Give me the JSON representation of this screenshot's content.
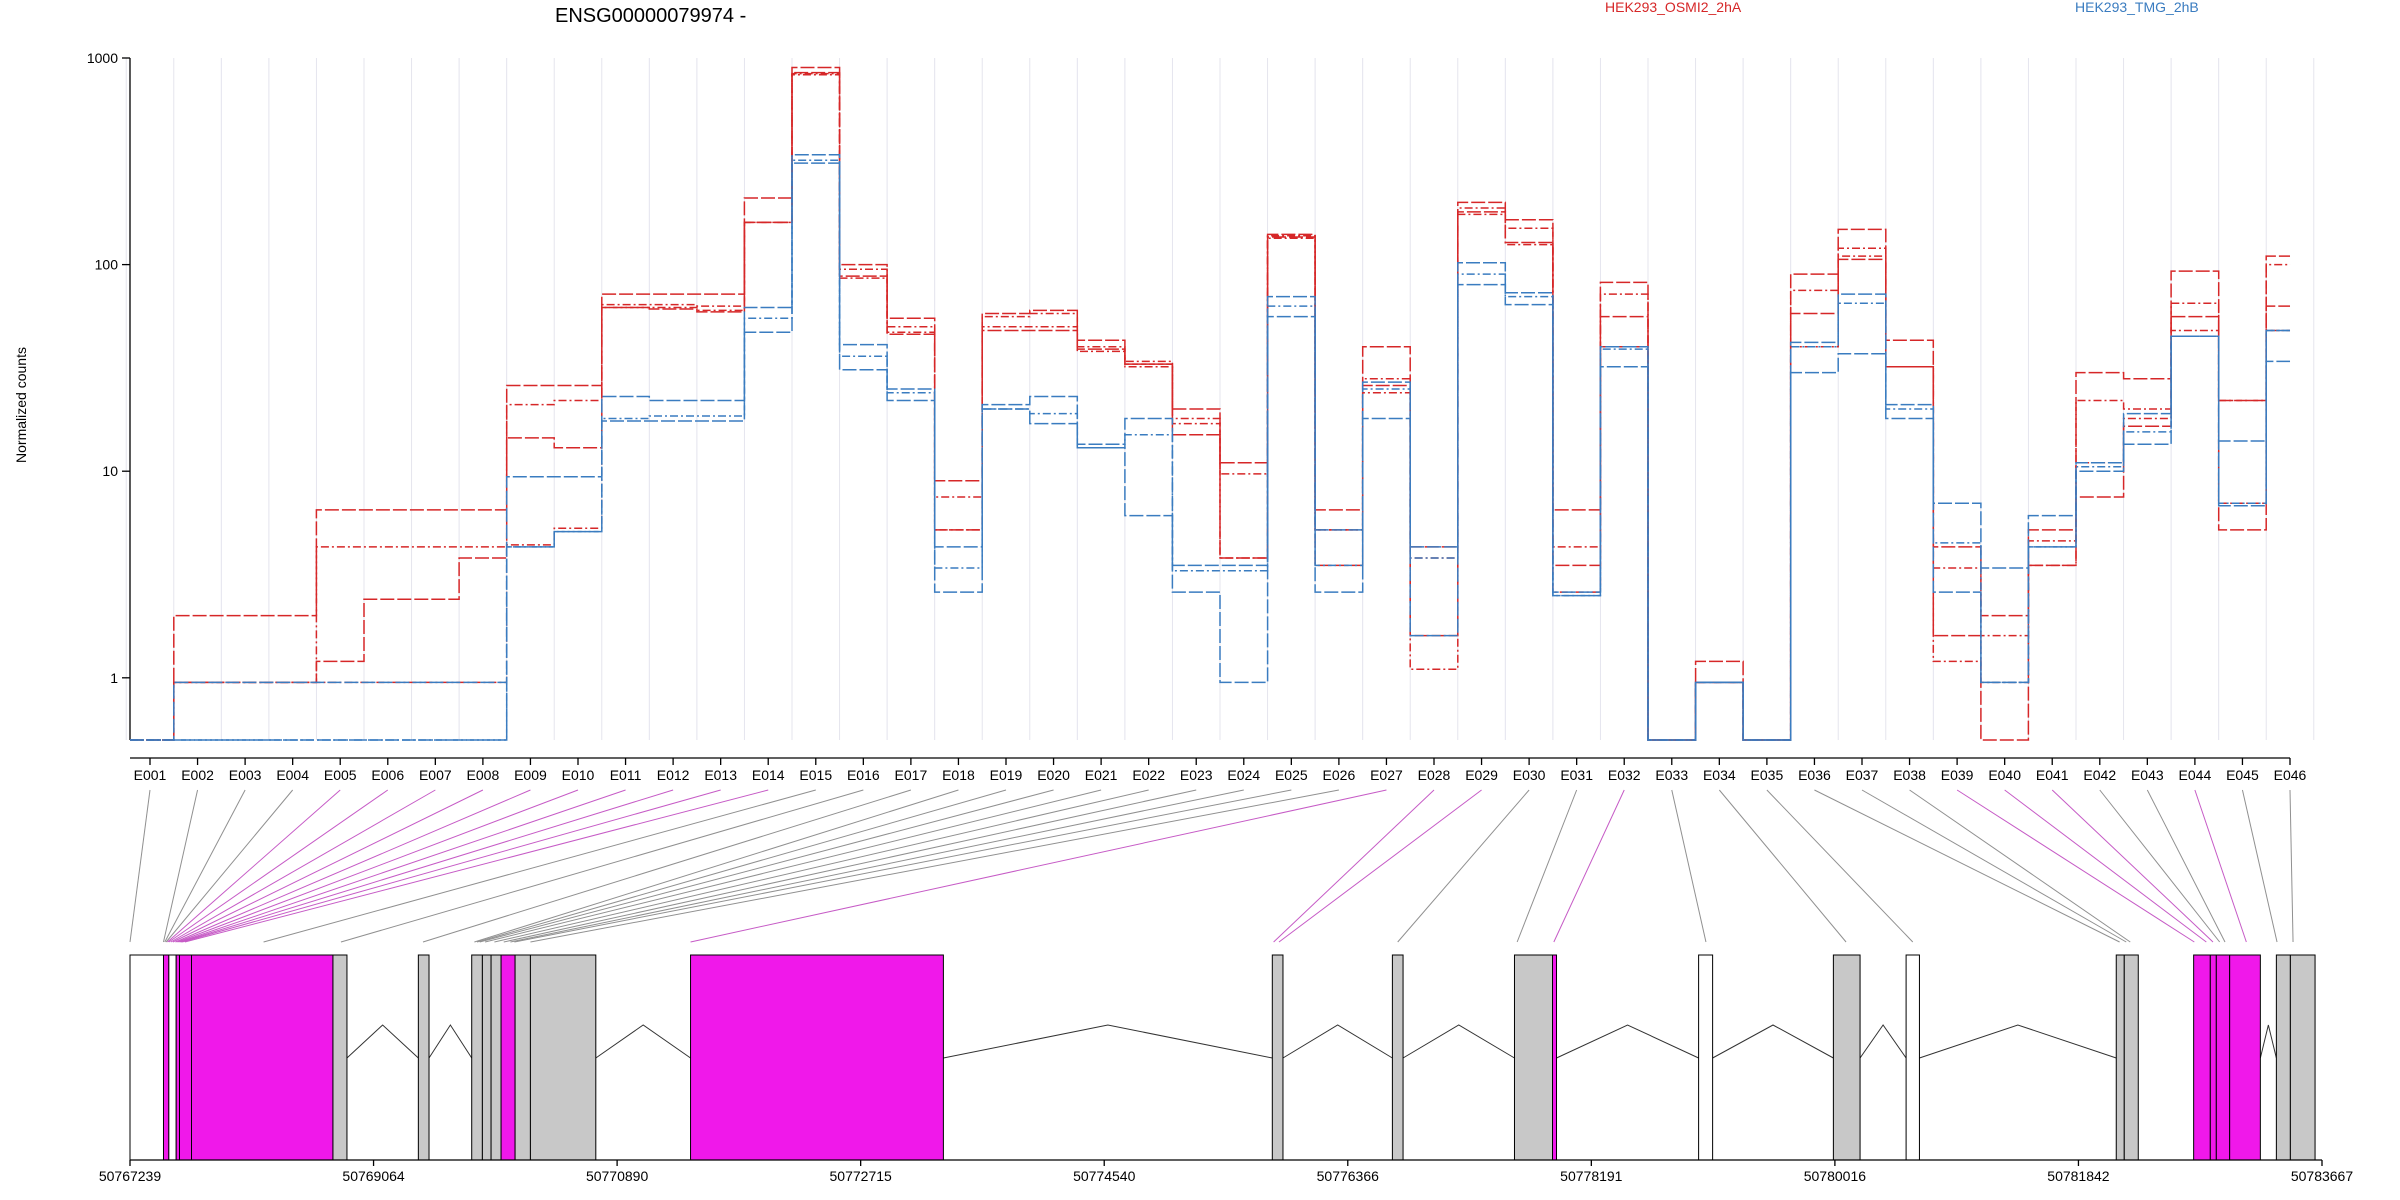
{
  "chart_data": {
    "type": "line",
    "title": "ENSG00000079974 -",
    "ylabel": "Normalized counts",
    "xlabel": "",
    "y_scale": "log",
    "ylim": [
      0.5,
      1000
    ],
    "yticks": [
      {
        "value": 1,
        "label": "1"
      },
      {
        "value": 10,
        "label": "10"
      },
      {
        "value": 100,
        "label": "100"
      },
      {
        "value": 1000,
        "label": "1000"
      }
    ],
    "grid": "vertical light",
    "categories": [
      "E001",
      "E002",
      "E003",
      "E004",
      "E005",
      "E006",
      "E007",
      "E008",
      "E009",
      "E010",
      "E011",
      "E012",
      "E013",
      "E014",
      "E015",
      "E016",
      "E017",
      "E018",
      "E019",
      "E020",
      "E021",
      "E022",
      "E023",
      "E024",
      "E025",
      "E026",
      "E027",
      "E028",
      "E029",
      "E030",
      "E031",
      "E032",
      "E033",
      "E034",
      "E035",
      "E036",
      "E037",
      "E038",
      "E039",
      "E040",
      "E041",
      "E042",
      "E043",
      "E044",
      "E045",
      "E046"
    ],
    "legend": [
      {
        "label": "HEK293_OSMI2_2hA",
        "color": "#d62728"
      },
      {
        "label": "HEK293_TMG_2hB",
        "color": "#3a7cc0"
      }
    ],
    "series": [
      {
        "name": "HEK293_OSMI2_2hA",
        "color": "#d62728",
        "values": [
          0.5,
          2.0,
          2.0,
          2.0,
          6.5,
          6.5,
          6.5,
          6.5,
          26,
          26,
          72,
          72,
          72,
          210,
          900,
          100,
          55,
          9.0,
          58,
          60,
          43,
          33,
          20,
          11,
          140,
          6.5,
          40,
          4.3,
          200,
          165,
          6.5,
          82,
          0.5,
          1.2,
          0.5,
          90,
          148,
          43,
          4.3,
          2.0,
          5.2,
          30,
          28,
          93,
          22,
          110
        ]
      },
      {
        "name": "HEK293_OSMI2_2hA",
        "color": "#d62728",
        "values": [
          0.5,
          0.95,
          0.95,
          0.95,
          4.3,
          4.3,
          4.3,
          4.3,
          21,
          22,
          64,
          64,
          63,
          160,
          840,
          95,
          50,
          7.5,
          56,
          58,
          40,
          34,
          18,
          9.7,
          138,
          5.2,
          28,
          3.8,
          188,
          150,
          4.3,
          72,
          0.5,
          0.95,
          0.5,
          75,
          120,
          32,
          3.4,
          1.6,
          4.6,
          22,
          20,
          65,
          22,
          100
        ]
      },
      {
        "name": "HEK293_OSMI2_2hA",
        "color": "#d62728",
        "values": [
          0.5,
          0.95,
          0.95,
          0.95,
          1.2,
          2.4,
          2.4,
          3.8,
          14.5,
          13,
          62,
          61,
          59,
          160,
          850,
          88,
          46,
          5.2,
          48,
          48,
          39,
          33,
          15,
          3.8,
          136,
          3.5,
          26,
          1.6,
          180,
          128,
          3.5,
          56,
          0.5,
          0.95,
          0.5,
          58,
          106,
          32,
          1.6,
          0.5,
          3.5,
          7.5,
          16.5,
          56,
          5.2,
          63
        ]
      },
      {
        "name": "HEK293_OSMI2_2hA",
        "color": "#d62728",
        "values": [
          0.5,
          0.95,
          0.95,
          0.95,
          0.95,
          0.95,
          0.95,
          0.95,
          4.4,
          5.3,
          62,
          62,
          60,
          160,
          830,
          86,
          47,
          5.2,
          50,
          50,
          38,
          32,
          17,
          3.8,
          134,
          5.2,
          24,
          1.1,
          175,
          125,
          2.6,
          40,
          0.5,
          0.95,
          0.5,
          40,
          110,
          32,
          1.2,
          0.95,
          3.5,
          11,
          18,
          48,
          7,
          48
        ]
      },
      {
        "name": "HEK293_TMG_2hB",
        "color": "#3a7cc0",
        "values": [
          0.5,
          0.95,
          0.95,
          0.95,
          0.95,
          0.95,
          0.95,
          0.95,
          9.4,
          9.4,
          23,
          22,
          22,
          62,
          340,
          41,
          25,
          4.3,
          21,
          23,
          13.5,
          18,
          3.5,
          3.5,
          70,
          5.2,
          27,
          4.3,
          102,
          73,
          2.6,
          40,
          0.5,
          0.95,
          0.5,
          42,
          72,
          21,
          7.0,
          3.4,
          6.1,
          11,
          19,
          45,
          14,
          48
        ]
      },
      {
        "name": "HEK293_TMG_2hB",
        "color": "#3a7cc0",
        "values": [
          0.5,
          0.5,
          0.5,
          0.5,
          0.5,
          0.5,
          0.5,
          0.5,
          4.3,
          5.1,
          18,
          18.5,
          18.5,
          55,
          320,
          36,
          24,
          3.4,
          20,
          19,
          13,
          15,
          3.3,
          3.3,
          63,
          3.5,
          25,
          3.8,
          90,
          70,
          2.5,
          39,
          0.5,
          0.95,
          0.5,
          40,
          65,
          20,
          4.5,
          0.95,
          4.3,
          10.5,
          15.5,
          45,
          7,
          48
        ]
      },
      {
        "name": "HEK293_TMG_2hB",
        "color": "#3a7cc0",
        "values": [
          0.5,
          0.5,
          0.5,
          0.5,
          0.5,
          0.5,
          0.5,
          0.5,
          4.3,
          5.1,
          17.5,
          17.5,
          17.5,
          47,
          310,
          31,
          22,
          2.6,
          20,
          17,
          13,
          6.1,
          2.6,
          0.95,
          56,
          2.6,
          18,
          1.6,
          80,
          64,
          2.5,
          32,
          0.5,
          0.95,
          0.5,
          30,
          37,
          18,
          2.6,
          0.95,
          4.3,
          10,
          13.5,
          45,
          6.8,
          34
        ]
      }
    ],
    "genome_axis": {
      "range": [
        50767239,
        50783667
      ],
      "tick_labels": [
        "50767239",
        "50769064",
        "50770890",
        "50772715",
        "50774540",
        "50776366",
        "50778191",
        "50780016",
        "50781842",
        "50783667"
      ]
    },
    "gene_model": {
      "exons": [
        {
          "start": 50767239,
          "end": 50767490,
          "fill": "#ffffff"
        },
        {
          "start": 50767490,
          "end": 50767530,
          "fill": "#f018ea"
        },
        {
          "start": 50767530,
          "end": 50767585,
          "fill": "#ffffff"
        },
        {
          "start": 50767585,
          "end": 50767610,
          "fill": "#f018ea"
        },
        {
          "start": 50767610,
          "end": 50767700,
          "fill": "#f018ea"
        },
        {
          "start": 50767700,
          "end": 50768760,
          "fill": "#f018ea"
        },
        {
          "start": 50768760,
          "end": 50768865,
          "fill": "#c8c8c8"
        },
        {
          "start": 50769400,
          "end": 50769480,
          "fill": "#c8c8c8"
        },
        {
          "start": 50769800,
          "end": 50769880,
          "fill": "#c8c8c8"
        },
        {
          "start": 50769880,
          "end": 50769945,
          "fill": "#c8c8c8"
        },
        {
          "start": 50769945,
          "end": 50770020,
          "fill": "#c8c8c8"
        },
        {
          "start": 50770020,
          "end": 50770125,
          "fill": "#f018ea"
        },
        {
          "start": 50770125,
          "end": 50770240,
          "fill": "#c8c8c8"
        },
        {
          "start": 50770240,
          "end": 50770730,
          "fill": "#c8c8c8"
        },
        {
          "start": 50771440,
          "end": 50773335,
          "fill": "#f018ea"
        },
        {
          "start": 50775800,
          "end": 50775880,
          "fill": "#c8c8c8"
        },
        {
          "start": 50776700,
          "end": 50776780,
          "fill": "#c8c8c8"
        },
        {
          "start": 50777615,
          "end": 50777900,
          "fill": "#c8c8c8"
        },
        {
          "start": 50777900,
          "end": 50777930,
          "fill": "#f018ea"
        },
        {
          "start": 50778995,
          "end": 50779100,
          "fill": "#ffffff"
        },
        {
          "start": 50780005,
          "end": 50780205,
          "fill": "#c8c8c8"
        },
        {
          "start": 50780550,
          "end": 50780650,
          "fill": "#ffffff"
        },
        {
          "start": 50782125,
          "end": 50782185,
          "fill": "#c8c8c8"
        },
        {
          "start": 50782185,
          "end": 50782290,
          "fill": "#c8c8c8"
        },
        {
          "start": 50782705,
          "end": 50782830,
          "fill": "#f018ea"
        },
        {
          "start": 50782830,
          "end": 50782875,
          "fill": "#f018ea"
        },
        {
          "start": 50782875,
          "end": 50782975,
          "fill": "#f018ea"
        },
        {
          "start": 50782975,
          "end": 50783205,
          "fill": "#f018ea"
        },
        {
          "start": 50783325,
          "end": 50783430,
          "fill": "#c8c8c8"
        },
        {
          "start": 50783430,
          "end": 50783615,
          "fill": "#c8c8c8"
        }
      ],
      "introns": [
        [
          50768865,
          50769400
        ],
        [
          50769480,
          50769800
        ],
        [
          50770730,
          50771440
        ],
        [
          50773335,
          50775800
        ],
        [
          50775880,
          50776700
        ],
        [
          50776780,
          50777615
        ],
        [
          50777930,
          50778995
        ],
        [
          50779100,
          50780005
        ],
        [
          50780205,
          50780550
        ],
        [
          50780650,
          50782125
        ],
        [
          50783205,
          50783325
        ]
      ],
      "connector_targets": [
        50767239,
        50767490,
        50767500,
        50767510,
        50767520,
        50767530,
        50767545,
        50767560,
        50767580,
        50767595,
        50767610,
        50767620,
        50767630,
        50767650,
        50768240,
        50768820,
        50769435,
        50769820,
        50769840,
        50769860,
        50769900,
        50769970,
        50770040,
        50770090,
        50770120,
        50770240,
        50771440,
        50775810,
        50775850,
        50776740,
        50777635,
        50777910,
        50779050,
        50780100,
        50780600,
        50782150,
        50782200,
        50782230,
        50782710,
        50782800,
        50782850,
        50782900,
        50782940,
        50783100,
        50783330,
        50783450
      ],
      "connector_colors": [
        "#909090",
        "#909090",
        "#909090",
        "#909090",
        "#c65bc6",
        "#c65bc6",
        "#c65bc6",
        "#c65bc6",
        "#c65bc6",
        "#c65bc6",
        "#c65bc6",
        "#c65bc6",
        "#c65bc6",
        "#c65bc6",
        "#909090",
        "#909090",
        "#909090",
        "#909090",
        "#909090",
        "#909090",
        "#909090",
        "#909090",
        "#909090",
        "#909090",
        "#909090",
        "#909090",
        "#c65bc6",
        "#c65bc6",
        "#c65bc6",
        "#909090",
        "#909090",
        "#c65bc6",
        "#909090",
        "#909090",
        "#909090",
        "#909090",
        "#909090",
        "#909090",
        "#c65bc6",
        "#c65bc6",
        "#c65bc6",
        "#909090",
        "#909090",
        "#c65bc6",
        "#909090",
        "#909090"
      ]
    }
  }
}
